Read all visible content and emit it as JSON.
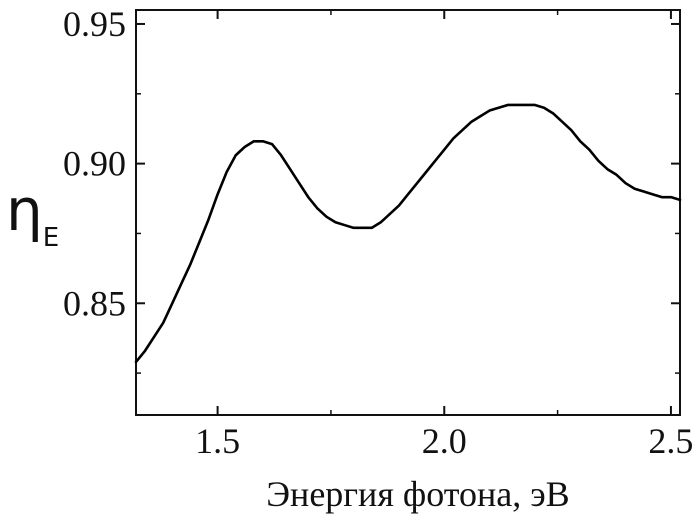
{
  "chart_data": {
    "type": "line",
    "title": "",
    "xlabel": "Энергия фотона, эВ",
    "ylabel": "η",
    "ylabel_subscript": "E",
    "xlim": [
      1.32,
      2.52
    ],
    "ylim": [
      0.81,
      0.955
    ],
    "x_ticks": [
      {
        "value": 1.5,
        "label": "1.5"
      },
      {
        "value": 2.0,
        "label": "2.0"
      },
      {
        "value": 2.5,
        "label": "2.5"
      }
    ],
    "y_ticks": [
      {
        "value": 0.85,
        "label": "0.85"
      },
      {
        "value": 0.9,
        "label": "0.90"
      },
      {
        "value": 0.95,
        "label": "0.95"
      }
    ],
    "grid": false,
    "colors": {
      "line": "#000000",
      "axis": "#111111"
    },
    "series": [
      {
        "x": [
          1.32,
          1.34,
          1.36,
          1.38,
          1.4,
          1.42,
          1.44,
          1.46,
          1.48,
          1.5,
          1.52,
          1.54,
          1.56,
          1.58,
          1.6,
          1.62,
          1.64,
          1.66,
          1.68,
          1.7,
          1.72,
          1.74,
          1.76,
          1.78,
          1.8,
          1.82,
          1.84,
          1.86,
          1.88,
          1.9,
          1.92,
          1.94,
          1.96,
          1.98,
          2.0,
          2.02,
          2.04,
          2.06,
          2.08,
          2.1,
          2.12,
          2.14,
          2.16,
          2.18,
          2.2,
          2.22,
          2.24,
          2.26,
          2.28,
          2.3,
          2.32,
          2.34,
          2.36,
          2.38,
          2.4,
          2.42,
          2.44,
          2.46,
          2.48,
          2.5,
          2.52
        ],
        "y": [
          0.829,
          0.833,
          0.838,
          0.843,
          0.85,
          0.857,
          0.864,
          0.872,
          0.88,
          0.889,
          0.897,
          0.903,
          0.906,
          0.908,
          0.908,
          0.907,
          0.903,
          0.898,
          0.893,
          0.888,
          0.884,
          0.881,
          0.879,
          0.878,
          0.877,
          0.877,
          0.877,
          0.879,
          0.882,
          0.885,
          0.889,
          0.893,
          0.897,
          0.901,
          0.905,
          0.909,
          0.912,
          0.915,
          0.917,
          0.919,
          0.92,
          0.921,
          0.921,
          0.921,
          0.921,
          0.92,
          0.918,
          0.915,
          0.912,
          0.908,
          0.905,
          0.901,
          0.898,
          0.896,
          0.893,
          0.891,
          0.89,
          0.889,
          0.888,
          0.888,
          0.887
        ]
      }
    ]
  }
}
